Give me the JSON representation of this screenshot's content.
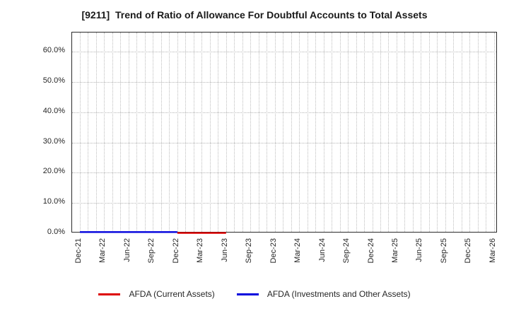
{
  "title": "[9211]  Trend of Ratio of Allowance For Doubtful Accounts to Total Assets",
  "chart_data": {
    "type": "line",
    "title": "[9211]  Trend of Ratio of Allowance For Doubtful Accounts to Total Assets",
    "categories": [
      "Dec-21",
      "Mar-22",
      "Jun-22",
      "Sep-22",
      "Dec-22",
      "Mar-23",
      "Jun-23",
      "Sep-23",
      "Dec-23",
      "Mar-24",
      "Jun-24",
      "Sep-24",
      "Dec-24",
      "Mar-25",
      "Jun-25",
      "Sep-25",
      "Dec-25",
      "Mar-26"
    ],
    "series": [
      {
        "name": "AFDA (Current Assets)",
        "color": "#dd0000",
        "values": [
          null,
          null,
          null,
          null,
          0.1,
          0.1,
          0.1,
          null,
          null,
          null,
          null,
          null,
          null,
          null,
          null,
          null,
          null,
          null
        ]
      },
      {
        "name": "AFDA (Investments and Other Assets)",
        "color": "#0000dd",
        "values": [
          0.4,
          0.4,
          0.4,
          0.4,
          0.4,
          null,
          null,
          null,
          null,
          null,
          null,
          null,
          null,
          null,
          null,
          null,
          null,
          null
        ]
      }
    ],
    "xlabel": "",
    "ylabel": "",
    "yticks": [
      0,
      10,
      20,
      30,
      40,
      50,
      60
    ],
    "ytick_labels": [
      "0.0%",
      "10.0%",
      "20.0%",
      "30.0%",
      "40.0%",
      "50.0%",
      "60.0%"
    ],
    "ylim": [
      0,
      66.4
    ],
    "grid": "dotted; horizontal major every 10%, vertical minor monthly (3 per quarter)",
    "legend_position": "bottom-center"
  }
}
